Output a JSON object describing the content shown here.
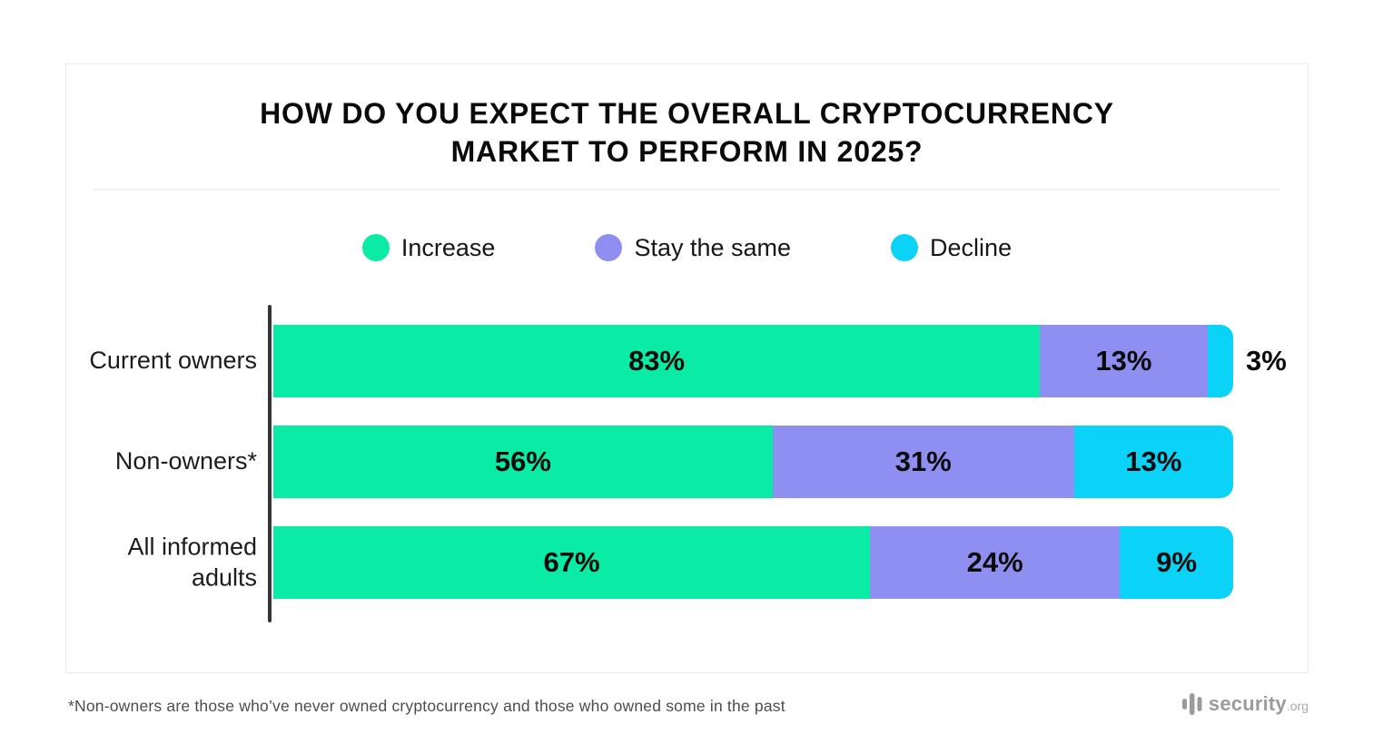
{
  "title_lines": [
    "HOW DO YOU EXPECT THE OVERALL CRYPTOCURRENCY",
    "MARKET TO PERFORM IN 2025?"
  ],
  "legend": [
    {
      "label": "Increase",
      "color": "#0AEBA6"
    },
    {
      "label": "Stay the same",
      "color": "#8F8FF2"
    },
    {
      "label": "Decline",
      "color": "#0BD2F7"
    }
  ],
  "chart_data": {
    "type": "bar",
    "orientation": "horizontal",
    "stacked": true,
    "normalized_to_100": true,
    "categories": [
      "Current owners",
      "Non-owners*",
      "All informed adults"
    ],
    "series": [
      {
        "name": "Increase",
        "color": "#0AEBA6",
        "values": [
          83,
          56,
          67
        ]
      },
      {
        "name": "Stay the same",
        "color": "#8F8FF2",
        "values": [
          13,
          31,
          24
        ]
      },
      {
        "name": "Decline",
        "color": "#0BD2F7",
        "values": [
          3,
          13,
          9
        ]
      }
    ],
    "value_suffix": "%",
    "outside_label_threshold": 5,
    "title": "HOW DO YOU EXPECT THE OVERALL CRYPTOCURRENCY MARKET TO PERFORM IN 2025?",
    "legend_position": "top",
    "grid": false,
    "axis_color": "#353535"
  },
  "footnote": "*Non-owners are those who’ve never owned cryptocurrency and those who owned some in the past",
  "logo": {
    "name": "security",
    "tld": ".org",
    "color": "#9b9b9b"
  }
}
